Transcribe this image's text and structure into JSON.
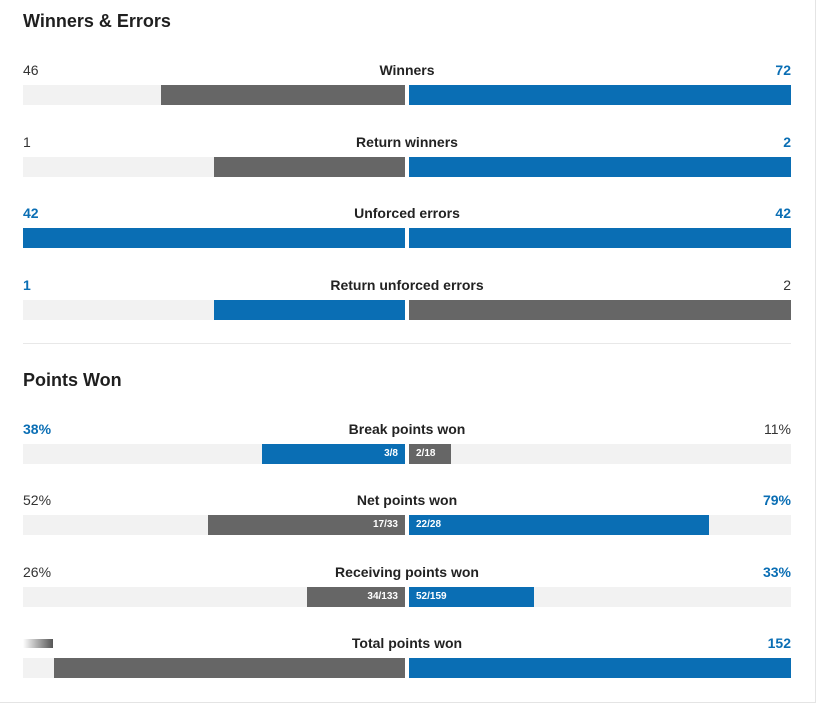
{
  "sections": [
    {
      "title": "Winners & Errors",
      "rows": [
        {
          "label": "Winners",
          "left": "46",
          "right": "72",
          "left_frac": 0.64,
          "right_frac": 1.0,
          "left_color": "gray",
          "right_color": "blue",
          "hi": "right"
        },
        {
          "label": "Return winners",
          "left": "1",
          "right": "2",
          "left_frac": 0.5,
          "right_frac": 1.0,
          "left_color": "gray",
          "right_color": "blue",
          "hi": "right"
        },
        {
          "label": "Unforced errors",
          "left": "42",
          "right": "42",
          "left_frac": 1.0,
          "right_frac": 1.0,
          "left_color": "blue",
          "right_color": "blue",
          "hi": "both"
        },
        {
          "label": "Return unforced errors",
          "left": "1",
          "right": "2",
          "left_frac": 0.5,
          "right_frac": 1.0,
          "left_color": "blue",
          "right_color": "gray",
          "hi": "left"
        }
      ]
    },
    {
      "title": "Points Won",
      "rows": [
        {
          "label": "Break points won",
          "left": "38%",
          "right": "11%",
          "left_frac": 0.375,
          "right_frac": 0.111,
          "left_color": "blue",
          "right_color": "gray",
          "hi": "left",
          "left_inner": "3/8",
          "right_inner": "2/18"
        },
        {
          "label": "Net points won",
          "left": "52%",
          "right": "79%",
          "left_frac": 0.515,
          "right_frac": 0.786,
          "left_color": "gray",
          "right_color": "blue",
          "hi": "right",
          "left_inner": "17/33",
          "right_inner": "22/28"
        },
        {
          "label": "Receiving points won",
          "left": "26%",
          "right": "33%",
          "left_frac": 0.256,
          "right_frac": 0.327,
          "left_color": "gray",
          "right_color": "blue",
          "hi": "right",
          "left_inner": "34/133",
          "right_inner": "52/159"
        },
        {
          "label": "Total points won",
          "left": "",
          "right": "152",
          "left_frac": 0.92,
          "right_frac": 1.0,
          "left_color": "gray",
          "right_color": "blue",
          "hi": "right",
          "left_blurred": true
        }
      ]
    }
  ]
}
